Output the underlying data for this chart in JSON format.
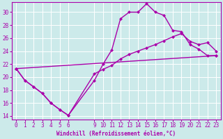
{
  "bg_color": "#cceaea",
  "line_color": "#aa00aa",
  "grid_color": "#ffffff",
  "xlabel": "Windchill (Refroidissement éolien,°C)",
  "xlim": [
    -0.5,
    23.5
  ],
  "ylim": [
    13.5,
    31.5
  ],
  "yticks": [
    14,
    16,
    18,
    20,
    22,
    24,
    26,
    28,
    30
  ],
  "xticks": [
    0,
    1,
    2,
    3,
    4,
    5,
    6,
    9,
    10,
    11,
    12,
    13,
    14,
    15,
    16,
    17,
    18,
    19,
    20,
    21,
    22,
    23
  ],
  "line1_x": [
    0,
    1,
    2,
    3,
    4,
    5,
    6,
    9,
    10,
    11,
    12,
    13,
    14,
    15,
    16,
    17,
    18,
    19,
    20,
    21,
    22,
    23
  ],
  "line1_y": [
    21.3,
    19.5,
    18.5,
    17.5,
    16.0,
    15.0,
    14.1,
    19.5,
    22.0,
    24.2,
    29.0,
    30.0,
    30.0,
    31.3,
    30.0,
    29.5,
    27.2,
    27.0,
    25.0,
    24.3,
    23.3,
    23.3
  ],
  "line2_x": [
    0,
    1,
    2,
    3,
    4,
    5,
    6,
    9,
    10,
    11,
    12,
    13,
    14,
    15,
    16,
    17,
    18,
    19,
    20,
    21,
    22,
    23
  ],
  "line2_y": [
    21.3,
    19.5,
    18.5,
    17.5,
    16.0,
    15.0,
    14.1,
    20.5,
    21.2,
    21.8,
    22.8,
    23.5,
    24.0,
    24.5,
    25.0,
    25.6,
    26.2,
    26.7,
    25.5,
    25.0,
    25.3,
    24.0
  ],
  "line3_x": [
    0,
    23
  ],
  "line3_y": [
    21.3,
    23.3
  ],
  "markersize": 2.5,
  "linewidth": 1.0,
  "tick_fontsize": 5.5,
  "xlabel_fontsize": 5.5
}
